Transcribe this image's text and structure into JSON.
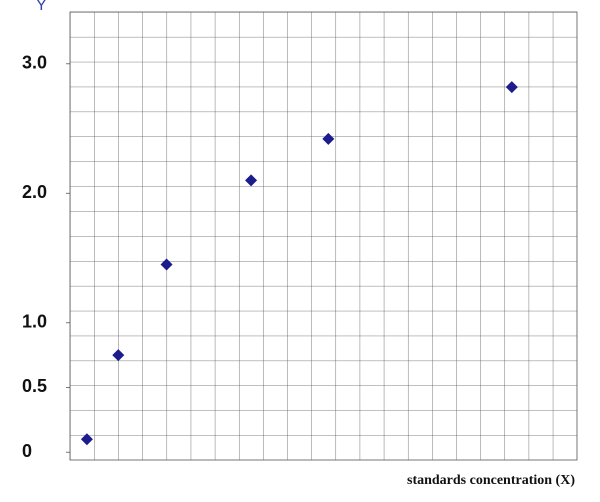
{
  "chart_data": {
    "type": "scatter",
    "y_label": "Y",
    "x_label": "standards concentration (X)",
    "x": [
      0.7,
      2.0,
      4.0,
      7.5,
      10.7,
      18.3
    ],
    "values": [
      0.1,
      0.75,
      1.45,
      2.1,
      2.42,
      2.82
    ],
    "color": "#1c1c8c",
    "xlim": [
      0,
      21
    ],
    "ylim": [
      -0.06,
      3.4
    ],
    "yticks": [
      {
        "value": 0,
        "label": "0"
      },
      0.5,
      {
        "value": 1,
        "label": "1.0"
      },
      {
        "value": 2,
        "label": "2.0"
      },
      {
        "value": 3,
        "label": "3.0"
      }
    ],
    "grid": true
  }
}
